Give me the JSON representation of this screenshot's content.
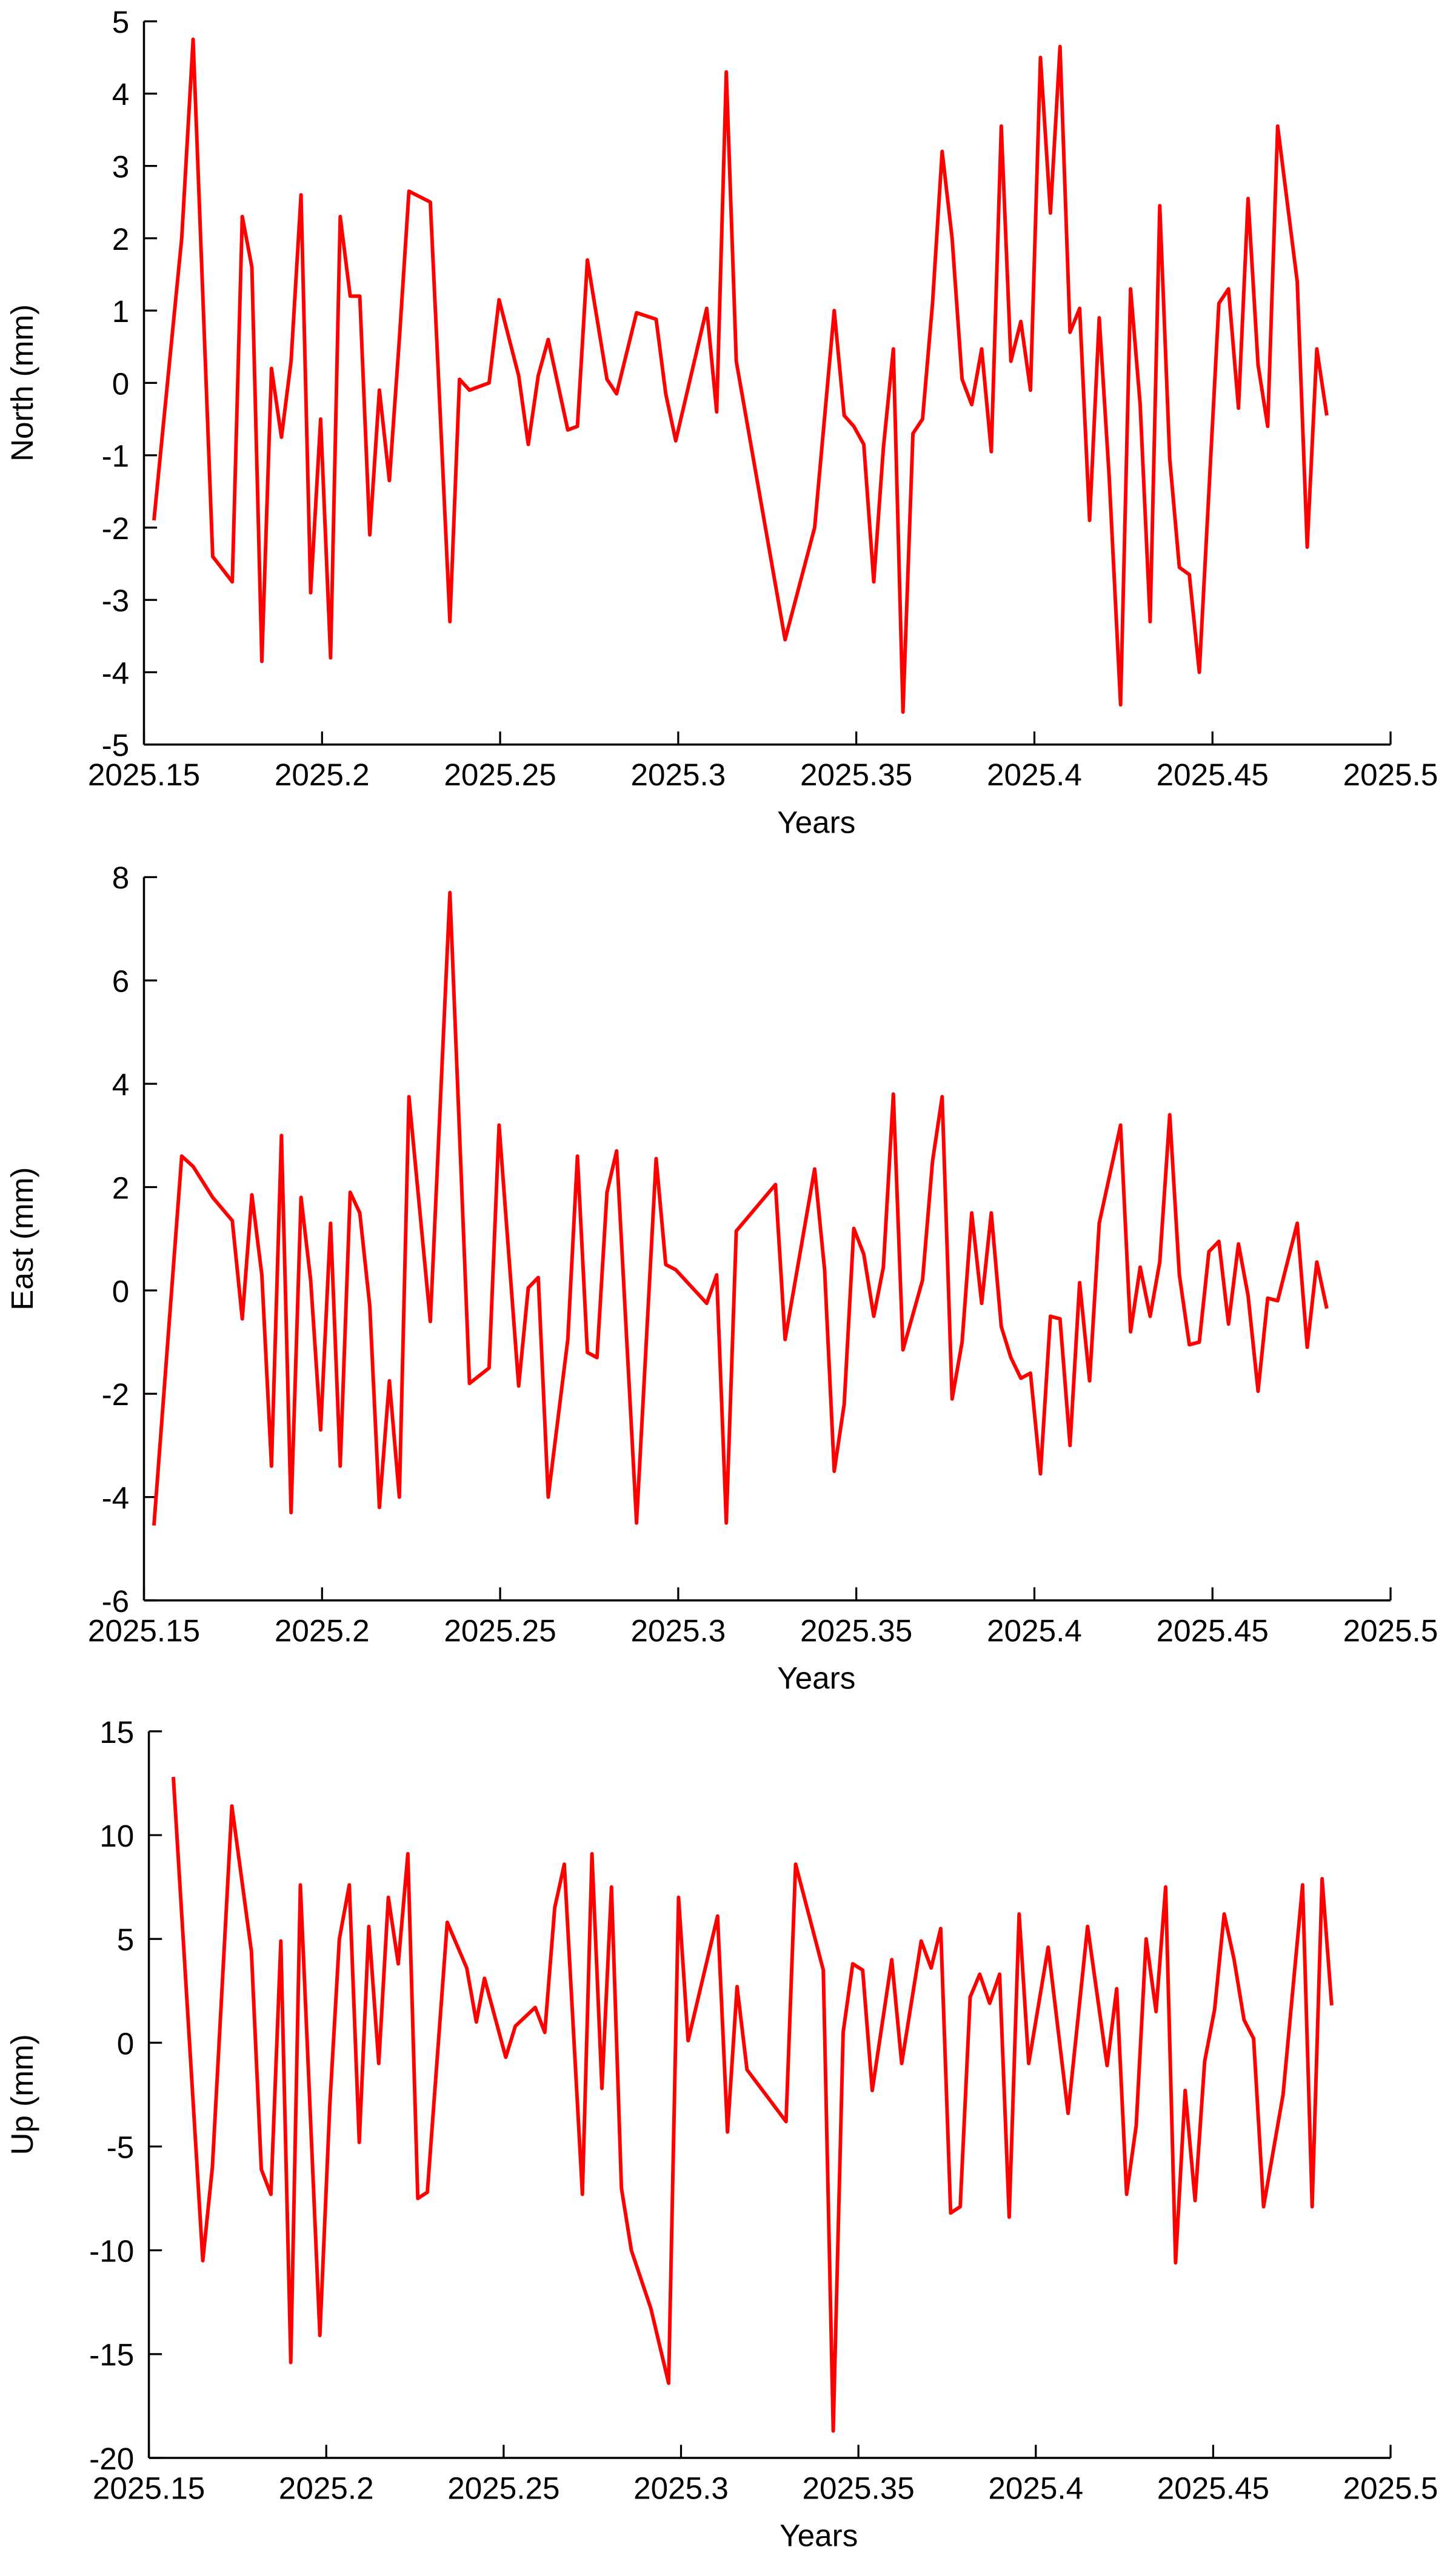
{
  "chart_data": [
    {
      "type": "line",
      "xlabel": "Years",
      "ylabel": "North (mm)",
      "xlim": [
        2025.15,
        2025.5
      ],
      "xticks": [
        2025.15,
        2025.2,
        2025.25,
        2025.3,
        2025.35,
        2025.4,
        2025.45,
        2025.5
      ],
      "ylim": [
        -5,
        5
      ],
      "yticks": [
        -5,
        -4,
        -3,
        -2,
        -1,
        0,
        1,
        2,
        3,
        4,
        5
      ],
      "x": [
        2025.1528,
        2025.1606,
        2025.1638,
        2025.1693,
        2025.1748,
        2025.1776,
        2025.1803,
        2025.1831,
        2025.1858,
        2025.1886,
        2025.1913,
        2025.1941,
        2025.1968,
        2025.1996,
        2025.2024,
        2025.2051,
        2025.2079,
        2025.2106,
        2025.2134,
        2025.2161,
        2025.2189,
        2025.2217,
        2025.2244,
        2025.2304,
        2025.2359,
        2025.2386,
        2025.2414,
        2025.2469,
        2025.2497,
        2025.2552,
        2025.2579,
        2025.2607,
        2025.2635,
        2025.269,
        2025.2717,
        2025.2745,
        2025.28,
        2025.2827,
        2025.2883,
        2025.2938,
        2025.2965,
        2025.2993,
        2025.308,
        2025.3108,
        2025.3135,
        2025.3163,
        2025.33,
        2025.3383,
        2025.3438,
        2025.3466,
        2025.3493,
        2025.3521,
        2025.3549,
        2025.3576,
        2025.3604,
        2025.3631,
        2025.3659,
        2025.3686,
        2025.3714,
        2025.3741,
        2025.3769,
        2025.3797,
        2025.3824,
        2025.3852,
        2025.3879,
        2025.3907,
        2025.3934,
        2025.3962,
        2025.3989,
        2025.4017,
        2025.4045,
        2025.4072,
        2025.41,
        2025.4127,
        2025.4155,
        2025.4182,
        2025.421,
        2025.4242,
        2025.427,
        2025.4297,
        2025.4325,
        2025.4352,
        2025.438,
        2025.4407,
        2025.4435,
        2025.4463,
        2025.449,
        2025.4518,
        2025.4545,
        2025.4573,
        2025.46,
        2025.4628,
        2025.4655,
        2025.4683,
        2025.4738,
        2025.4766,
        2025.4793,
        2025.4821
      ],
      "series": [
        {
          "color": "#ff0000",
          "values": [
            -1.9,
            2.0,
            4.75,
            -2.4,
            -2.75,
            2.3,
            1.6,
            -3.85,
            0.2,
            -0.75,
            0.3,
            2.6,
            -2.9,
            -0.5,
            -3.8,
            2.3,
            1.2,
            1.2,
            -2.1,
            -0.1,
            -1.35,
            0.6,
            2.65,
            2.5,
            -3.3,
            0.05,
            -0.1,
            0,
            1.15,
            0.1,
            -0.85,
            0.1,
            0.6,
            -0.65,
            -0.6,
            1.7,
            0.05,
            -0.15,
            0.97,
            0.88,
            -0.15,
            -0.8,
            1.03,
            -0.4,
            4.3,
            0.3,
            -3.55,
            -2.0,
            1.0,
            -0.45,
            -0.6,
            -0.85,
            -2.75,
            -0.9,
            0.47,
            -4.55,
            -0.7,
            -0.5,
            1.1,
            3.2,
            2.0,
            0.05,
            -0.3,
            0.47,
            -0.95,
            3.55,
            0.3,
            0.85,
            -0.1,
            4.5,
            2.35,
            4.65,
            0.7,
            1.03,
            -1.9,
            0.9,
            -1.3,
            -4.45,
            1.3,
            -0.3,
            -3.3,
            2.45,
            -1.05,
            -2.55,
            -2.65,
            -4.0,
            -1.5,
            1.1,
            1.3,
            -0.35,
            2.55,
            0.25,
            -0.6,
            3.55,
            1.4,
            -2.27,
            0.47,
            -0.45
          ]
        }
      ]
    },
    {
      "type": "line",
      "xlabel": "Years",
      "ylabel": "East (mm)",
      "xlim": [
        2025.15,
        2025.5
      ],
      "xticks": [
        2025.15,
        2025.2,
        2025.25,
        2025.3,
        2025.35,
        2025.4,
        2025.45,
        2025.5
      ],
      "ylim": [
        -6,
        8
      ],
      "yticks": [
        -6,
        -4,
        -2,
        0,
        2,
        4,
        6,
        8
      ],
      "x": [
        2025.1528,
        2025.1606,
        2025.1638,
        2025.1693,
        2025.1748,
        2025.1776,
        2025.1803,
        2025.1831,
        2025.1858,
        2025.1886,
        2025.1913,
        2025.1941,
        2025.1968,
        2025.1996,
        2025.2024,
        2025.2051,
        2025.2079,
        2025.2106,
        2025.2134,
        2025.2161,
        2025.2189,
        2025.2217,
        2025.2244,
        2025.2304,
        2025.2359,
        2025.2414,
        2025.2469,
        2025.2497,
        2025.2552,
        2025.2579,
        2025.2607,
        2025.2635,
        2025.269,
        2025.2717,
        2025.2745,
        2025.2772,
        2025.28,
        2025.2827,
        2025.2883,
        2025.2938,
        2025.2965,
        2025.2993,
        2025.308,
        2025.3108,
        2025.3135,
        2025.3163,
        2025.3273,
        2025.33,
        2025.3383,
        2025.3411,
        2025.3438,
        2025.3466,
        2025.3493,
        2025.3521,
        2025.3549,
        2025.3576,
        2025.3604,
        2025.3631,
        2025.3686,
        2025.3714,
        2025.3741,
        2025.3769,
        2025.3797,
        2025.3824,
        2025.3852,
        2025.3879,
        2025.3907,
        2025.3934,
        2025.3962,
        2025.3989,
        2025.4017,
        2025.4045,
        2025.4072,
        2025.41,
        2025.4127,
        2025.4155,
        2025.4182,
        2025.4242,
        2025.427,
        2025.4297,
        2025.4325,
        2025.4352,
        2025.438,
        2025.4407,
        2025.4435,
        2025.4463,
        2025.449,
        2025.4518,
        2025.4545,
        2025.4573,
        2025.46,
        2025.4628,
        2025.4655,
        2025.4683,
        2025.4738,
        2025.4766,
        2025.4793,
        2025.4821
      ],
      "series": [
        {
          "color": "#ff0000",
          "values": [
            -4.55,
            2.6,
            2.4,
            1.8,
            1.35,
            -0.55,
            1.85,
            0.3,
            -3.4,
            3.0,
            -4.3,
            1.8,
            0.2,
            -2.7,
            1.3,
            -3.4,
            1.9,
            1.5,
            -0.3,
            -4.2,
            -1.75,
            -4.0,
            3.75,
            -0.6,
            7.7,
            -1.8,
            -1.5,
            3.2,
            -1.85,
            0.05,
            0.25,
            -4.0,
            -0.95,
            2.6,
            -1.2,
            -1.3,
            1.9,
            2.7,
            -4.5,
            2.55,
            0.5,
            0.4,
            -0.25,
            0.3,
            -4.5,
            1.15,
            2.05,
            -0.95,
            2.35,
            0.4,
            -3.5,
            -2.2,
            1.2,
            0.7,
            -0.5,
            0.45,
            3.8,
            -1.15,
            0.2,
            2.5,
            3.75,
            -2.1,
            -1.0,
            1.5,
            -0.25,
            1.5,
            -0.7,
            -1.3,
            -1.7,
            -1.6,
            -3.55,
            -0.5,
            -0.55,
            -3.0,
            0.15,
            -1.75,
            1.3,
            3.2,
            -0.8,
            0.45,
            -0.5,
            0.55,
            3.4,
            0.3,
            -1.05,
            -1.0,
            0.75,
            0.95,
            -0.65,
            0.9,
            -0.1,
            -1.95,
            -0.15,
            -0.2,
            1.3,
            -1.1,
            0.55,
            -0.35
          ]
        }
      ]
    },
    {
      "type": "line",
      "xlabel": "Years",
      "ylabel": "Up (mm)",
      "xlim": [
        2025.15,
        2025.5
      ],
      "xticks": [
        2025.15,
        2025.2,
        2025.25,
        2025.3,
        2025.35,
        2025.4,
        2025.45,
        2025.5
      ],
      "ylim": [
        -20,
        15
      ],
      "yticks": [
        -20,
        -15,
        -10,
        -5,
        0,
        5,
        10,
        15
      ],
      "x": [
        2025.1569,
        2025.1652,
        2025.1679,
        2025.1734,
        2025.1789,
        2025.1817,
        2025.1844,
        2025.1872,
        2025.19,
        2025.1927,
        2025.1982,
        2025.201,
        2025.2037,
        2025.2065,
        2025.2093,
        2025.212,
        2025.2148,
        2025.2175,
        2025.2203,
        2025.223,
        2025.2258,
        2025.2285,
        2025.2341,
        2025.2396,
        2025.2423,
        2025.2446,
        2025.2506,
        2025.2533,
        2025.2589,
        2025.2616,
        2025.2644,
        2025.2671,
        2025.2722,
        2025.2749,
        2025.2777,
        2025.2804,
        2025.2832,
        2025.286,
        2025.2915,
        2025.2965,
        2025.2993,
        2025.302,
        2025.3103,
        2025.3131,
        2025.3158,
        2025.3186,
        2025.3296,
        2025.3323,
        2025.3401,
        2025.3429,
        2025.3457,
        2025.3484,
        2025.3512,
        2025.3539,
        2025.3594,
        2025.3622,
        2025.3677,
        2025.3705,
        2025.3732,
        2025.376,
        2025.3787,
        2025.3815,
        2025.3842,
        2025.387,
        2025.3898,
        2025.3925,
        2025.3953,
        2025.398,
        2025.4035,
        2025.4091,
        2025.4146,
        2025.4201,
        2025.4228,
        2025.4256,
        2025.4283,
        2025.4311,
        2025.4339,
        2025.4366,
        2025.4394,
        2025.4421,
        2025.4449,
        2025.4476,
        2025.4504,
        2025.4531,
        2025.4559,
        2025.4587,
        2025.4614,
        2025.4642,
        2025.4697,
        2025.4752,
        2025.4779,
        2025.4807,
        2025.4834
      ],
      "series": [
        {
          "color": "#ff0000",
          "values": [
            12.8,
            -10.5,
            -6,
            11.4,
            4.4,
            -6.1,
            -7.3,
            4.9,
            -15.4,
            7.6,
            -14.1,
            -3,
            5,
            7.6,
            -4.8,
            5.6,
            -1,
            7,
            3.8,
            9.1,
            -7.5,
            -7.2,
            5.8,
            3.6,
            1.0,
            3.1,
            -0.7,
            0.8,
            1.7,
            0.5,
            6.5,
            8.6,
            -7.3,
            9.1,
            -2.2,
            7.5,
            -7,
            -10,
            -12.8,
            -16.4,
            7.0,
            0.1,
            6.1,
            -4.3,
            2.7,
            -1.3,
            -3.8,
            8.6,
            3.5,
            -18.7,
            0.5,
            3.8,
            3.5,
            -2.3,
            4.0,
            -1.0,
            4.9,
            3.6,
            5.5,
            -8.2,
            -7.9,
            2.2,
            3.3,
            1.9,
            3.3,
            -8.4,
            6.2,
            -1.0,
            4.6,
            -3.4,
            5.6,
            -1.1,
            2.6,
            -7.3,
            -4,
            5,
            1.5,
            7.5,
            -10.6,
            -2.3,
            -7.6,
            -0.9,
            1.6,
            6.2,
            4,
            1.1,
            0.2,
            -7.9,
            -2.5,
            7.6,
            -7.9,
            7.9,
            1.8
          ]
        }
      ]
    }
  ]
}
